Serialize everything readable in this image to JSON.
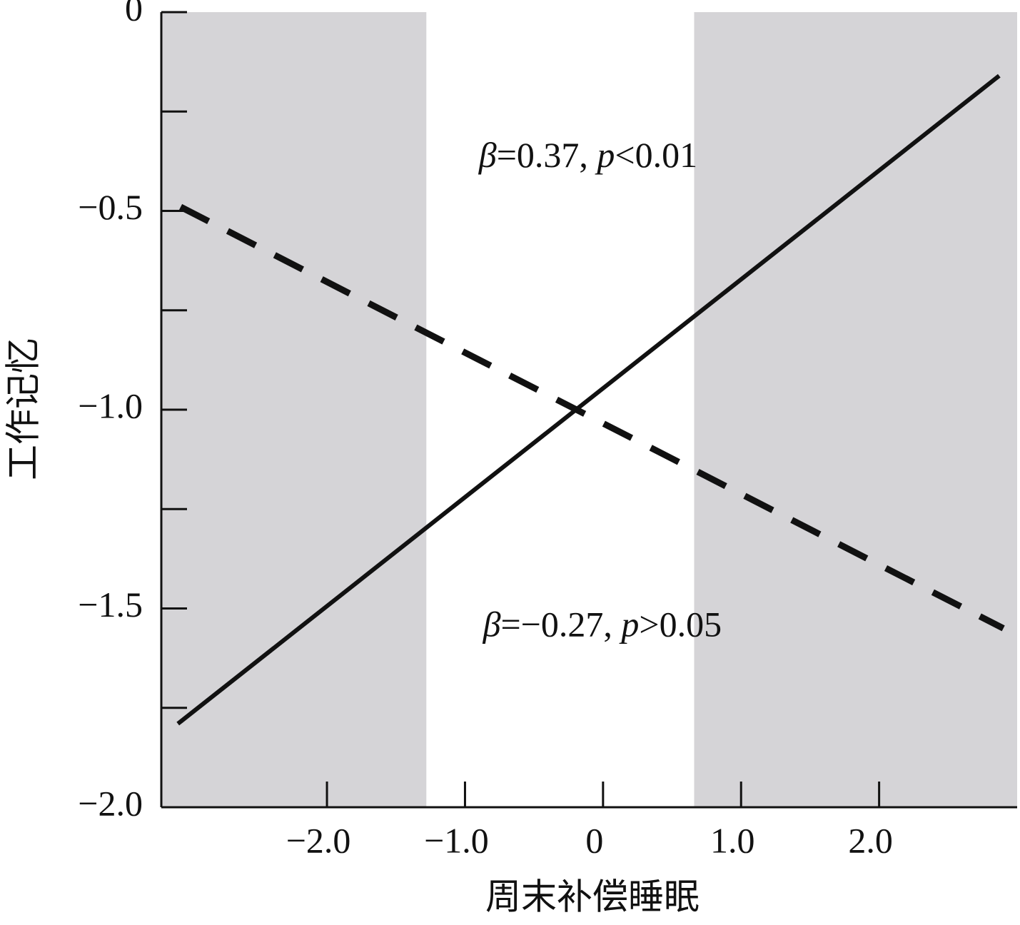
{
  "chart_data": {
    "type": "line",
    "x_label": "周末补偿睡眠",
    "y_label": "工作记忆",
    "xlim": [
      -3.2,
      3.0
    ],
    "ylim": [
      -2.0,
      0
    ],
    "xticks": [
      {
        "value": -2,
        "label": "−2.0"
      },
      {
        "value": -1,
        "label": "−1.0"
      },
      0,
      {
        "value": 1,
        "label": "1.0"
      },
      {
        "value": 2,
        "label": "2.0"
      }
    ],
    "yticks": [
      0,
      {
        "value": -0.5,
        "label": "−0.5"
      },
      {
        "value": -1.0,
        "label": "−1.0"
      },
      {
        "value": -1.5,
        "label": "−1.5"
      },
      {
        "value": -2.0,
        "label": "−2.0"
      }
    ],
    "yminorticks": [
      -0.25,
      -0.75,
      -1.25,
      -1.75
    ],
    "shaded_regions": [
      [
        -3.2,
        -1.28
      ],
      [
        0.66,
        3.0
      ]
    ],
    "shade_color": "#d5d4d7",
    "grid": false,
    "series": [
      {
        "color": "#111111",
        "style": "solid",
        "x": [
          -3.08,
          2.87
        ],
        "values": [
          -1.79,
          -0.16
        ]
      },
      {
        "color": "#111111",
        "style": "dashed",
        "x": [
          -3.06,
          2.9
        ],
        "values": [
          -0.49,
          -1.55
        ]
      }
    ],
    "annotations": [
      {
        "parts": [
          "β",
          "=0.37, ",
          "p",
          "<0.01"
        ],
        "x": -0.9,
        "y": -0.37
      },
      {
        "parts": [
          "β",
          "=−0.27, ",
          "p",
          ">0.05"
        ],
        "x": -0.87,
        "y": -1.55
      }
    ]
  }
}
